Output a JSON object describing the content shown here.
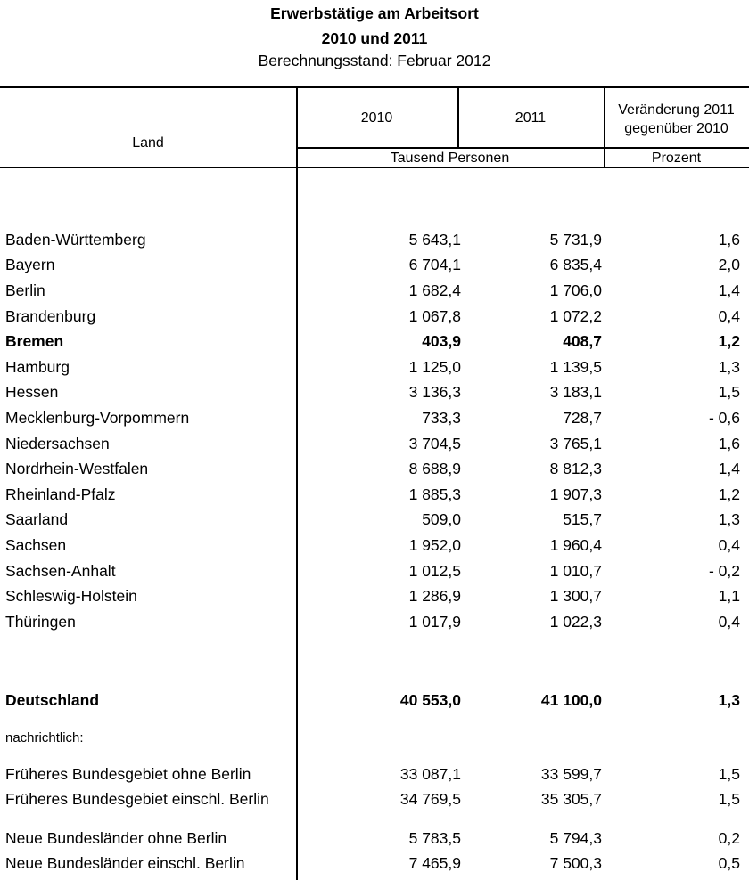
{
  "title": {
    "line1": "Erwerbstätige am Arbeitsort",
    "line2": "2010 und 2011",
    "line3": "Berechnungsstand: Februar 2012"
  },
  "header": {
    "land": "Land",
    "year1": "2010",
    "year2": "2011",
    "change": "Veränderung 2011 gegenüber 2010",
    "unit_persons": "Tausend Personen",
    "unit_percent": "Prozent"
  },
  "note": "nachrichtlich:",
  "sections": {
    "states": [
      {
        "land": "Baden-Württemberg",
        "y2010": "5 643,1",
        "y2011": "5 731,9",
        "change": "1,6",
        "bold": false
      },
      {
        "land": "Bayern",
        "y2010": "6 704,1",
        "y2011": "6 835,4",
        "change": "2,0",
        "bold": false
      },
      {
        "land": "Berlin",
        "y2010": "1 682,4",
        "y2011": "1 706,0",
        "change": "1,4",
        "bold": false
      },
      {
        "land": "Brandenburg",
        "y2010": "1 067,8",
        "y2011": "1 072,2",
        "change": "0,4",
        "bold": false
      },
      {
        "land": "Bremen",
        "y2010": "403,9",
        "y2011": "408,7",
        "change": "1,2",
        "bold": true
      },
      {
        "land": "Hamburg",
        "y2010": "1 125,0",
        "y2011": "1 139,5",
        "change": "1,3",
        "bold": false
      },
      {
        "land": "Hessen",
        "y2010": "3 136,3",
        "y2011": "3 183,1",
        "change": "1,5",
        "bold": false
      },
      {
        "land": "Mecklenburg-Vorpommern",
        "y2010": "733,3",
        "y2011": "728,7",
        "change": "- 0,6",
        "bold": false
      },
      {
        "land": "Niedersachsen",
        "y2010": "3 704,5",
        "y2011": "3 765,1",
        "change": "1,6",
        "bold": false
      },
      {
        "land": "Nordrhein-Westfalen",
        "y2010": "8 688,9",
        "y2011": "8 812,3",
        "change": "1,4",
        "bold": false
      },
      {
        "land": "Rheinland-Pfalz",
        "y2010": "1 885,3",
        "y2011": "1 907,3",
        "change": "1,2",
        "bold": false
      },
      {
        "land": "Saarland",
        "y2010": "509,0",
        "y2011": "515,7",
        "change": "1,3",
        "bold": false
      },
      {
        "land": "Sachsen",
        "y2010": "1 952,0",
        "y2011": "1 960,4",
        "change": "0,4",
        "bold": false
      },
      {
        "land": "Sachsen-Anhalt",
        "y2010": "1 012,5",
        "y2011": "1 010,7",
        "change": "- 0,2",
        "bold": false
      },
      {
        "land": "Schleswig-Holstein",
        "y2010": "1 286,9",
        "y2011": "1 300,7",
        "change": "1,1",
        "bold": false
      },
      {
        "land": "Thüringen",
        "y2010": "1 017,9",
        "y2011": "1 022,3",
        "change": "0,4",
        "bold": false
      }
    ],
    "total": [
      {
        "land": "Deutschland",
        "y2010": "40 553,0",
        "y2011": "41 100,0",
        "change": "1,3",
        "bold": true
      }
    ],
    "memo_west": [
      {
        "land": "Früheres Bundesgebiet ohne Berlin",
        "y2010": "33 087,1",
        "y2011": "33 599,7",
        "change": "1,5",
        "bold": false
      },
      {
        "land": "Früheres Bundesgebiet einschl. Berlin",
        "y2010": "34 769,5",
        "y2011": "35 305,7",
        "change": "1,5",
        "bold": false
      }
    ],
    "memo_east": [
      {
        "land": "Neue Bundesländer ohne Berlin",
        "y2010": "5 783,5",
        "y2011": "5 794,3",
        "change": "0,2",
        "bold": false
      },
      {
        "land": "Neue Bundesländer einschl. Berlin",
        "y2010": "7 465,9",
        "y2011": "7 500,3",
        "change": "0,5",
        "bold": false
      }
    ]
  },
  "colors": {
    "text": "#000000",
    "background": "#ffffff",
    "rule": "#000000"
  }
}
